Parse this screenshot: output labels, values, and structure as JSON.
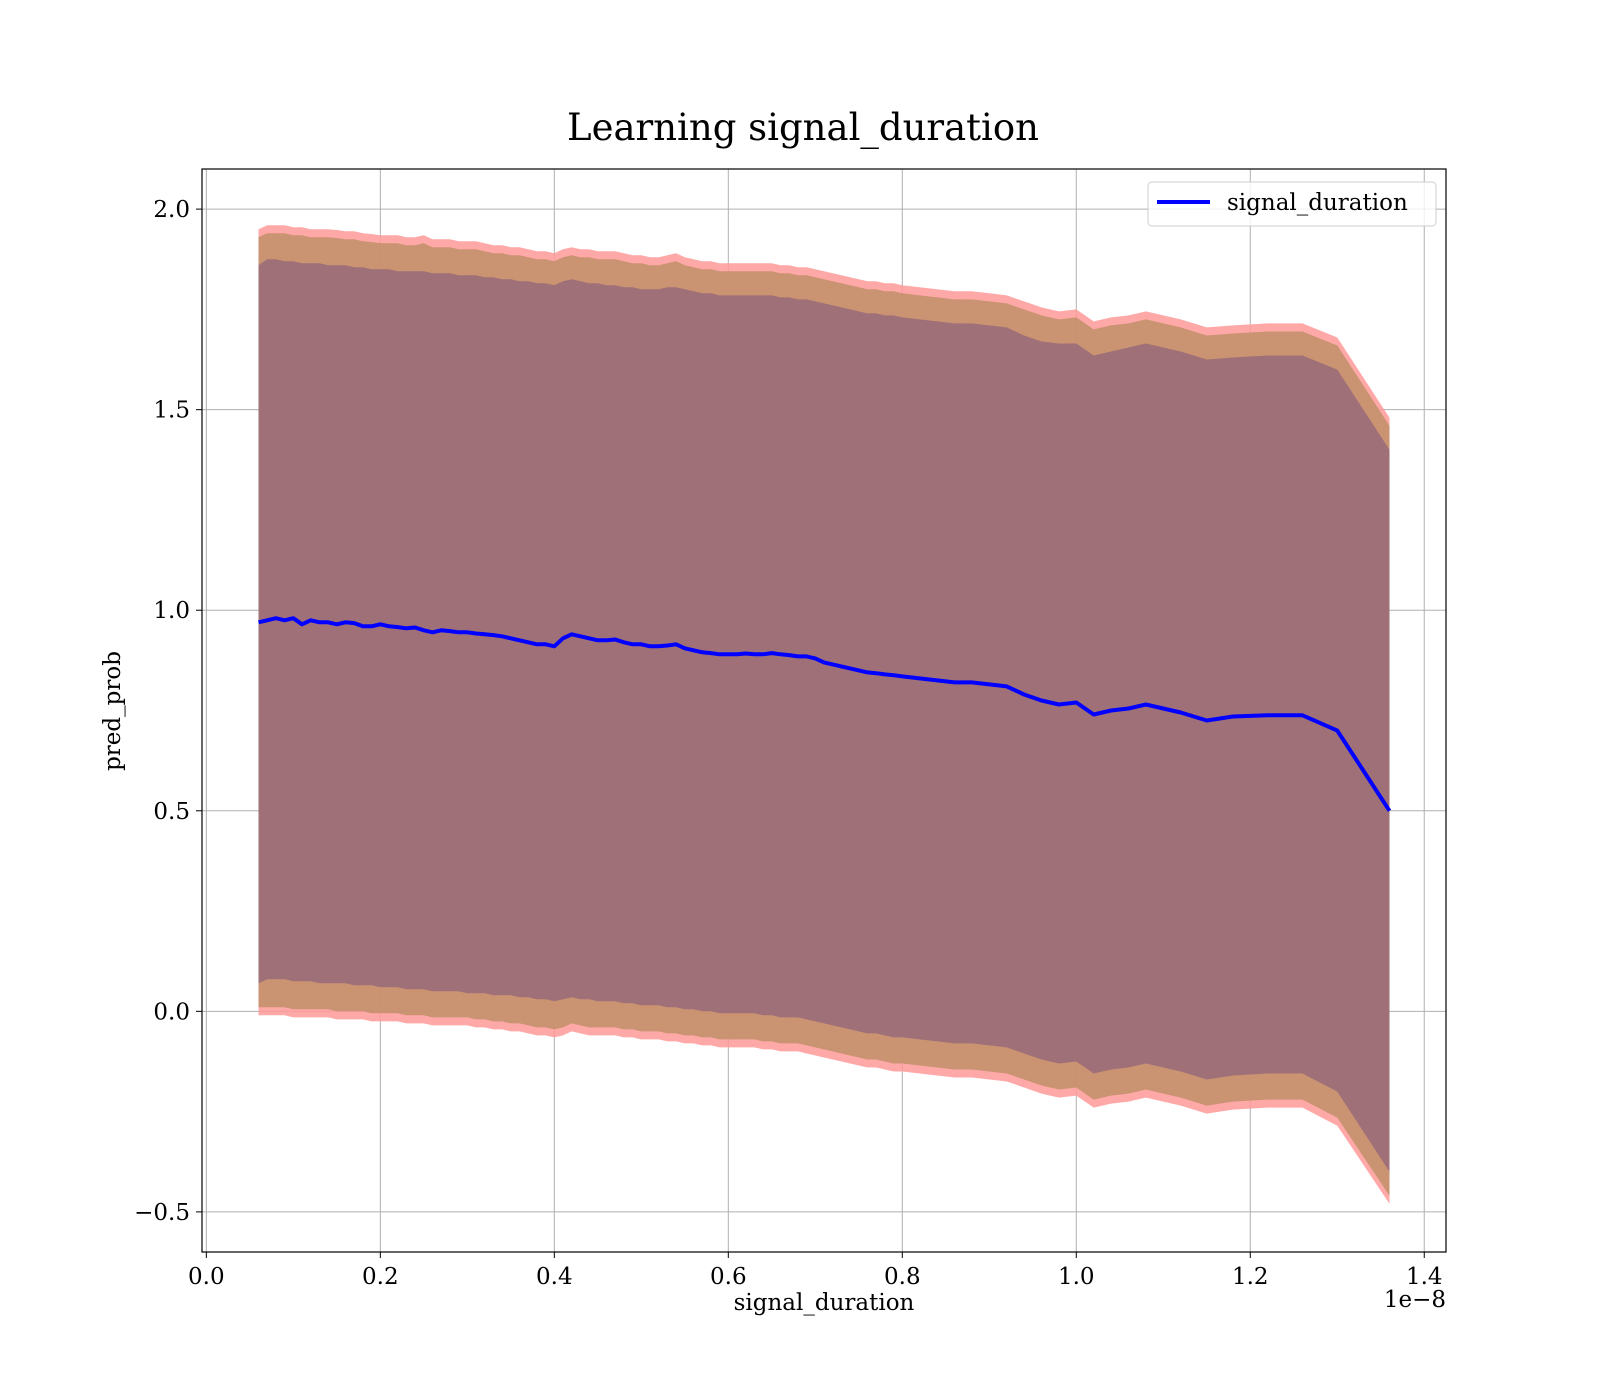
{
  "chart_data": {
    "type": "line",
    "title": "Learning signal_duration",
    "xlabel": "signal_duration",
    "ylabel": "pred_prob",
    "x_offset_label": "1e−8",
    "xlim": [
      -0.005,
      1.425
    ],
    "ylim": [
      -0.6,
      2.1
    ],
    "x_ticks": [
      0.0,
      0.2,
      0.4,
      0.6,
      0.8,
      1.0,
      1.2,
      1.4
    ],
    "x_tick_labels": [
      "0.0",
      "0.2",
      "0.4",
      "0.6",
      "0.8",
      "1.0",
      "1.2",
      "1.4"
    ],
    "y_ticks": [
      -0.5,
      0.0,
      0.5,
      1.0,
      1.5,
      2.0
    ],
    "y_tick_labels": [
      "−0.5",
      "0.0",
      "0.5",
      "1.0",
      "1.5",
      "2.0"
    ],
    "grid": true,
    "legend_position": "top-right",
    "series": [
      {
        "name": "signal_duration",
        "color": "#0000ff",
        "x": [
          0.06,
          0.07,
          0.08,
          0.09,
          0.1,
          0.11,
          0.12,
          0.13,
          0.14,
          0.15,
          0.16,
          0.17,
          0.18,
          0.19,
          0.2,
          0.21,
          0.22,
          0.23,
          0.24,
          0.25,
          0.26,
          0.27,
          0.28,
          0.29,
          0.3,
          0.31,
          0.32,
          0.33,
          0.34,
          0.35,
          0.36,
          0.37,
          0.38,
          0.39,
          0.4,
          0.41,
          0.42,
          0.43,
          0.44,
          0.45,
          0.46,
          0.47,
          0.48,
          0.49,
          0.5,
          0.51,
          0.52,
          0.53,
          0.54,
          0.55,
          0.56,
          0.57,
          0.58,
          0.59,
          0.6,
          0.61,
          0.62,
          0.63,
          0.64,
          0.65,
          0.66,
          0.67,
          0.68,
          0.69,
          0.7,
          0.71,
          0.72,
          0.73,
          0.74,
          0.75,
          0.76,
          0.77,
          0.78,
          0.79,
          0.8,
          0.82,
          0.84,
          0.86,
          0.88,
          0.9,
          0.92,
          0.94,
          0.96,
          0.98,
          1.0,
          1.02,
          1.04,
          1.06,
          1.08,
          1.1,
          1.12,
          1.15,
          1.18,
          1.22,
          1.26,
          1.3,
          1.36
        ],
        "values": [
          0.97,
          0.975,
          0.98,
          0.975,
          0.98,
          0.965,
          0.975,
          0.97,
          0.97,
          0.965,
          0.97,
          0.968,
          0.96,
          0.96,
          0.965,
          0.96,
          0.958,
          0.955,
          0.957,
          0.95,
          0.945,
          0.95,
          0.948,
          0.945,
          0.945,
          0.942,
          0.94,
          0.938,
          0.935,
          0.93,
          0.925,
          0.92,
          0.915,
          0.915,
          0.91,
          0.93,
          0.94,
          0.935,
          0.93,
          0.925,
          0.925,
          0.927,
          0.92,
          0.915,
          0.915,
          0.91,
          0.91,
          0.912,
          0.915,
          0.905,
          0.9,
          0.895,
          0.893,
          0.89,
          0.89,
          0.89,
          0.892,
          0.89,
          0.89,
          0.893,
          0.89,
          0.888,
          0.885,
          0.885,
          0.88,
          0.87,
          0.865,
          0.86,
          0.855,
          0.85,
          0.845,
          0.843,
          0.84,
          0.838,
          0.835,
          0.83,
          0.825,
          0.82,
          0.82,
          0.815,
          0.81,
          0.79,
          0.775,
          0.765,
          0.77,
          0.74,
          0.75,
          0.755,
          0.765,
          0.755,
          0.745,
          0.725,
          0.735,
          0.738,
          0.738,
          0.7,
          0.5
        ],
        "outer_band_color": "#ff9999",
        "middle_band_color": "#c4906c",
        "inner_band_color": "#a07078",
        "outer_band": {
          "upper": [
            1.95,
            1.96,
            1.96,
            1.96,
            1.955,
            1.955,
            1.95,
            1.95,
            1.95,
            1.948,
            1.945,
            1.945,
            1.94,
            1.938,
            1.935,
            1.935,
            1.935,
            1.93,
            1.93,
            1.935,
            1.925,
            1.925,
            1.925,
            1.92,
            1.92,
            1.92,
            1.915,
            1.91,
            1.91,
            1.905,
            1.905,
            1.9,
            1.895,
            1.895,
            1.89,
            1.9,
            1.905,
            1.9,
            1.9,
            1.895,
            1.895,
            1.895,
            1.89,
            1.885,
            1.885,
            1.88,
            1.88,
            1.885,
            1.89,
            1.88,
            1.875,
            1.87,
            1.87,
            1.865,
            1.865,
            1.865,
            1.865,
            1.865,
            1.865,
            1.865,
            1.86,
            1.86,
            1.855,
            1.855,
            1.85,
            1.845,
            1.84,
            1.835,
            1.83,
            1.825,
            1.82,
            1.82,
            1.815,
            1.815,
            1.81,
            1.805,
            1.8,
            1.795,
            1.795,
            1.79,
            1.785,
            1.77,
            1.755,
            1.745,
            1.75,
            1.72,
            1.73,
            1.735,
            1.745,
            1.735,
            1.725,
            1.705,
            1.71,
            1.715,
            1.715,
            1.68,
            1.48
          ],
          "lower": [
            -0.01,
            -0.01,
            -0.01,
            -0.01,
            -0.015,
            -0.015,
            -0.015,
            -0.015,
            -0.015,
            -0.02,
            -0.02,
            -0.02,
            -0.02,
            -0.025,
            -0.025,
            -0.025,
            -0.025,
            -0.03,
            -0.03,
            -0.03,
            -0.035,
            -0.035,
            -0.035,
            -0.035,
            -0.035,
            -0.04,
            -0.04,
            -0.045,
            -0.045,
            -0.05,
            -0.05,
            -0.055,
            -0.06,
            -0.06,
            -0.065,
            -0.06,
            -0.05,
            -0.055,
            -0.06,
            -0.06,
            -0.06,
            -0.06,
            -0.065,
            -0.065,
            -0.07,
            -0.07,
            -0.07,
            -0.075,
            -0.075,
            -0.08,
            -0.08,
            -0.085,
            -0.085,
            -0.09,
            -0.09,
            -0.09,
            -0.09,
            -0.09,
            -0.095,
            -0.095,
            -0.1,
            -0.1,
            -0.1,
            -0.105,
            -0.11,
            -0.115,
            -0.12,
            -0.125,
            -0.13,
            -0.135,
            -0.14,
            -0.14,
            -0.145,
            -0.15,
            -0.15,
            -0.155,
            -0.16,
            -0.165,
            -0.165,
            -0.17,
            -0.175,
            -0.19,
            -0.205,
            -0.215,
            -0.21,
            -0.24,
            -0.23,
            -0.225,
            -0.215,
            -0.225,
            -0.235,
            -0.255,
            -0.245,
            -0.24,
            -0.24,
            -0.285,
            -0.48
          ]
        },
        "middle_band": {
          "upper": [
            1.93,
            1.94,
            1.94,
            1.94,
            1.935,
            1.935,
            1.93,
            1.93,
            1.93,
            1.928,
            1.925,
            1.925,
            1.92,
            1.918,
            1.915,
            1.915,
            1.915,
            1.91,
            1.91,
            1.915,
            1.905,
            1.905,
            1.905,
            1.9,
            1.9,
            1.9,
            1.895,
            1.89,
            1.89,
            1.885,
            1.885,
            1.88,
            1.875,
            1.875,
            1.87,
            1.88,
            1.885,
            1.88,
            1.88,
            1.875,
            1.875,
            1.875,
            1.87,
            1.865,
            1.865,
            1.86,
            1.86,
            1.865,
            1.87,
            1.86,
            1.855,
            1.85,
            1.85,
            1.845,
            1.845,
            1.845,
            1.845,
            1.845,
            1.845,
            1.845,
            1.84,
            1.84,
            1.835,
            1.835,
            1.83,
            1.825,
            1.82,
            1.815,
            1.81,
            1.805,
            1.8,
            1.8,
            1.795,
            1.795,
            1.79,
            1.785,
            1.78,
            1.775,
            1.775,
            1.77,
            1.765,
            1.75,
            1.735,
            1.725,
            1.73,
            1.7,
            1.71,
            1.715,
            1.725,
            1.715,
            1.705,
            1.685,
            1.69,
            1.695,
            1.695,
            1.66,
            1.46
          ],
          "lower": [
            0.01,
            0.01,
            0.01,
            0.01,
            0.005,
            0.005,
            0.005,
            0.005,
            0.005,
            0.0,
            0.0,
            0.0,
            0.0,
            -0.005,
            -0.005,
            -0.005,
            -0.005,
            -0.01,
            -0.01,
            -0.01,
            -0.015,
            -0.015,
            -0.015,
            -0.015,
            -0.015,
            -0.02,
            -0.02,
            -0.025,
            -0.025,
            -0.03,
            -0.03,
            -0.035,
            -0.04,
            -0.04,
            -0.045,
            -0.04,
            -0.03,
            -0.035,
            -0.04,
            -0.04,
            -0.04,
            -0.04,
            -0.045,
            -0.045,
            -0.05,
            -0.05,
            -0.05,
            -0.055,
            -0.055,
            -0.06,
            -0.06,
            -0.065,
            -0.065,
            -0.07,
            -0.07,
            -0.07,
            -0.07,
            -0.07,
            -0.075,
            -0.075,
            -0.08,
            -0.08,
            -0.08,
            -0.085,
            -0.09,
            -0.095,
            -0.1,
            -0.105,
            -0.11,
            -0.115,
            -0.12,
            -0.12,
            -0.125,
            -0.13,
            -0.13,
            -0.135,
            -0.14,
            -0.145,
            -0.145,
            -0.15,
            -0.155,
            -0.17,
            -0.185,
            -0.195,
            -0.19,
            -0.22,
            -0.21,
            -0.205,
            -0.195,
            -0.205,
            -0.215,
            -0.235,
            -0.225,
            -0.22,
            -0.22,
            -0.265,
            -0.46
          ]
        },
        "inner_band": {
          "upper": [
            1.86,
            1.875,
            1.875,
            1.87,
            1.87,
            1.865,
            1.865,
            1.865,
            1.86,
            1.86,
            1.86,
            1.855,
            1.855,
            1.85,
            1.85,
            1.85,
            1.845,
            1.845,
            1.845,
            1.845,
            1.84,
            1.84,
            1.84,
            1.835,
            1.835,
            1.835,
            1.83,
            1.83,
            1.825,
            1.825,
            1.82,
            1.82,
            1.815,
            1.815,
            1.81,
            1.82,
            1.825,
            1.82,
            1.815,
            1.815,
            1.81,
            1.81,
            1.805,
            1.805,
            1.8,
            1.8,
            1.8,
            1.805,
            1.805,
            1.8,
            1.795,
            1.79,
            1.79,
            1.785,
            1.785,
            1.785,
            1.785,
            1.785,
            1.785,
            1.785,
            1.78,
            1.78,
            1.775,
            1.775,
            1.77,
            1.765,
            1.76,
            1.755,
            1.75,
            1.745,
            1.74,
            1.74,
            1.735,
            1.735,
            1.73,
            1.725,
            1.72,
            1.715,
            1.715,
            1.71,
            1.705,
            1.685,
            1.67,
            1.665,
            1.665,
            1.635,
            1.645,
            1.655,
            1.665,
            1.655,
            1.645,
            1.625,
            1.63,
            1.635,
            1.635,
            1.6,
            1.4
          ],
          "lower": [
            0.07,
            0.08,
            0.08,
            0.08,
            0.075,
            0.075,
            0.075,
            0.07,
            0.07,
            0.07,
            0.07,
            0.065,
            0.065,
            0.065,
            0.06,
            0.06,
            0.06,
            0.055,
            0.055,
            0.055,
            0.05,
            0.05,
            0.05,
            0.05,
            0.045,
            0.045,
            0.045,
            0.04,
            0.04,
            0.04,
            0.035,
            0.035,
            0.03,
            0.03,
            0.025,
            0.03,
            0.035,
            0.03,
            0.03,
            0.025,
            0.025,
            0.025,
            0.02,
            0.02,
            0.015,
            0.015,
            0.015,
            0.01,
            0.01,
            0.005,
            0.005,
            0.0,
            0.0,
            -0.005,
            -0.005,
            -0.005,
            -0.005,
            -0.005,
            -0.01,
            -0.01,
            -0.015,
            -0.015,
            -0.015,
            -0.02,
            -0.025,
            -0.03,
            -0.035,
            -0.04,
            -0.045,
            -0.05,
            -0.055,
            -0.055,
            -0.06,
            -0.065,
            -0.065,
            -0.07,
            -0.075,
            -0.08,
            -0.08,
            -0.085,
            -0.09,
            -0.105,
            -0.12,
            -0.13,
            -0.125,
            -0.155,
            -0.145,
            -0.14,
            -0.13,
            -0.14,
            -0.15,
            -0.17,
            -0.16,
            -0.155,
            -0.155,
            -0.2,
            -0.4
          ]
        }
      }
    ]
  }
}
